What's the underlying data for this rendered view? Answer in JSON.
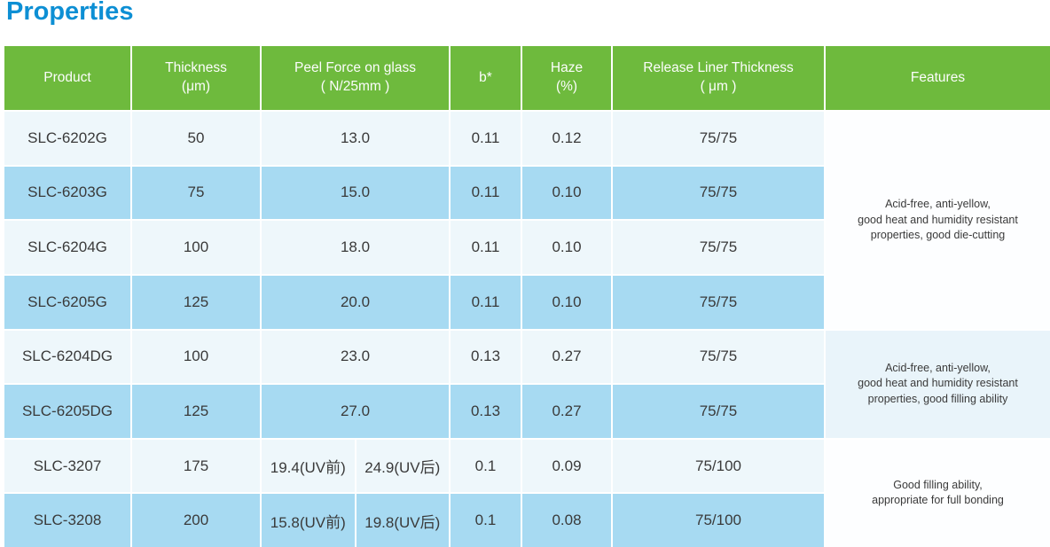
{
  "page": {
    "title": "Properties"
  },
  "colors": {
    "title_blue": "#0d8fd4",
    "header_green": "#6eba3d",
    "row_light": "#eef7fb",
    "row_blue": "#a7daf2",
    "features_light": "#fdfeff",
    "features_blue": "#e9f4fa",
    "cell_text": "#3a3a3a"
  },
  "table": {
    "headers": {
      "product": "Product",
      "thickness": "Thickness\n(μm)",
      "peel": "Peel Force on glass\n( N/25mm )",
      "b": "b*",
      "haze": "Haze\n(%)",
      "liner": "Release Liner Thickness\n( μm )",
      "features": "Features"
    },
    "rows": [
      {
        "product": "SLC-6202G",
        "thickness": "50",
        "peel": "13.0",
        "b": "0.11",
        "haze": "0.12",
        "liner": "75/75"
      },
      {
        "product": "SLC-6203G",
        "thickness": "75",
        "peel": "15.0",
        "b": "0.11",
        "haze": "0.10",
        "liner": "75/75"
      },
      {
        "product": "SLC-6204G",
        "thickness": "100",
        "peel": "18.0",
        "b": "0.11",
        "haze": "0.10",
        "liner": "75/75"
      },
      {
        "product": "SLC-6205G",
        "thickness": "125",
        "peel": "20.0",
        "b": "0.11",
        "haze": "0.10",
        "liner": "75/75"
      },
      {
        "product": "SLC-6204DG",
        "thickness": "100",
        "peel": "23.0",
        "b": "0.13",
        "haze": "0.27",
        "liner": "75/75"
      },
      {
        "product": "SLC-6205DG",
        "thickness": "125",
        "peel": "27.0",
        "b": "0.13",
        "haze": "0.27",
        "liner": "75/75"
      },
      {
        "product": "SLC-3207",
        "thickness": "175",
        "peel_pre": "19.4(UV前)",
        "peel_post": "24.9(UV后)",
        "b": "0.1",
        "haze": "0.09",
        "liner": "75/100"
      },
      {
        "product": "SLC-3208",
        "thickness": "200",
        "peel_pre": "15.8(UV前)",
        "peel_post": "19.8(UV后)",
        "b": "0.1",
        "haze": "0.08",
        "liner": "75/100"
      }
    ],
    "features": [
      "Acid-free, anti-yellow,\ngood heat and humidity resistant\nproperties, good die-cutting",
      "Acid-free, anti-yellow,\ngood heat and humidity resistant\nproperties, good filling ability",
      "Good filling ability,\nappropriate for full bonding"
    ]
  }
}
